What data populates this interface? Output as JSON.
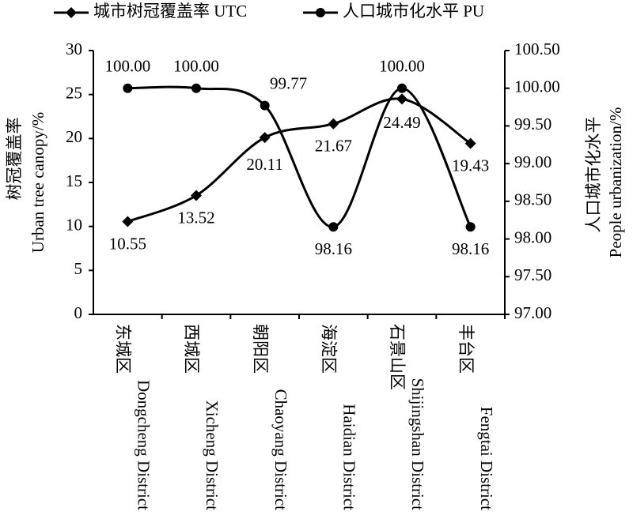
{
  "chart_data": {
    "type": "line",
    "categories": [
      [
        "东城区",
        "Dongcheng District"
      ],
      [
        "西城区",
        "Xicheng District"
      ],
      [
        "朝阳区",
        "Chaoyang District"
      ],
      [
        "海淀区",
        "Haidian District"
      ],
      [
        "石景山区",
        "Shijingshan District"
      ],
      [
        "丰台区",
        "Fengtai District"
      ]
    ],
    "y_label": [
      "树冠覆盖率",
      "Urban tree canopy/%"
    ],
    "y2_label": [
      "人口城市化水平",
      "People urbanization/%"
    ],
    "ylim": [
      0,
      30
    ],
    "yticks": [
      0,
      5,
      10,
      15,
      20,
      25,
      30
    ],
    "y2lim": [
      97,
      100.5
    ],
    "y2ticks": [
      {
        "value": 97,
        "label": "97.00"
      },
      {
        "value": 97.5,
        "label": "97.50"
      },
      {
        "value": 98,
        "label": "98.00"
      },
      {
        "value": 98.5,
        "label": "98.50"
      },
      {
        "value": 99,
        "label": "99.00"
      },
      {
        "value": 99.5,
        "label": "99.50"
      },
      {
        "value": 100,
        "label": "100.00"
      },
      {
        "value": 100.5,
        "label": "100.50"
      }
    ],
    "legend": "top",
    "series": [
      {
        "name": "城市树冠覆盖率 UTC",
        "color": "#000000",
        "marker": "diamond",
        "values": [
          10.55,
          13.52,
          20.11,
          21.67,
          24.49,
          19.43
        ]
      },
      {
        "name": "人口城市化水平 PU",
        "color": "#000000",
        "marker": "circle",
        "axis": "y2",
        "values": [
          100,
          100,
          99.77,
          98.16,
          100,
          98.16
        ],
        "value_labels": [
          "100.00",
          "100.00",
          "99.77",
          "98.16",
          "100.00",
          "98.16"
        ]
      }
    ]
  }
}
